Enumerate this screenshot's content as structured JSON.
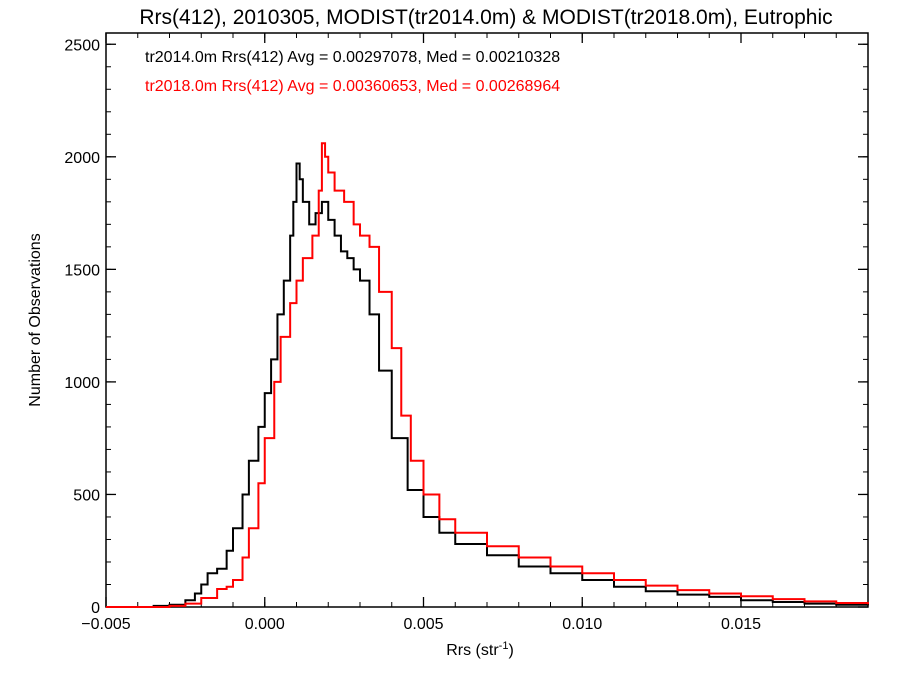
{
  "chart_data": {
    "type": "line",
    "title": "Rrs(412), 2010305, MODIST(tr2014.0m) & MODIST(tr2018.0m), Eutrophic",
    "xlabel": "Rrs (str",
    "xlabel_sup": "-1",
    "xlabel_close": ")",
    "ylabel": "Number of Observations",
    "xlim": [
      -0.005,
      0.019
    ],
    "ylim": [
      0,
      2550
    ],
    "xticks": [
      -0.005,
      0.0,
      0.005,
      0.01,
      0.015
    ],
    "xtick_labels": [
      "−0.005",
      "0.000",
      "0.005",
      "0.010",
      "0.015"
    ],
    "yticks": [
      0,
      500,
      1000,
      1500,
      2000,
      2500
    ],
    "ytick_labels": [
      "0",
      "500",
      "1000",
      "1500",
      "2000",
      "2500"
    ],
    "grid": false,
    "legend_placement": "top-left",
    "annotations": [
      {
        "text": "tr2014.0m Rrs(412) Avg = 0.00297078, Med = 0.00210328",
        "color": "#000000"
      },
      {
        "text": "tr2018.0m Rrs(412) Avg = 0.00360653, Med = 0.00268964",
        "color": "#ff0000"
      }
    ],
    "series": [
      {
        "name": "tr2014.0m",
        "color": "#000000",
        "draw": "steps",
        "x": [
          -0.005,
          -0.004,
          -0.0035,
          -0.003,
          -0.0025,
          -0.0022,
          -0.002,
          -0.0018,
          -0.0015,
          -0.0012,
          -0.001,
          -0.0007,
          -0.0005,
          -0.0002,
          0.0,
          0.0002,
          0.0004,
          0.0006,
          0.0008,
          0.0009,
          0.001,
          0.0011,
          0.0012,
          0.0014,
          0.0016,
          0.0018,
          0.002,
          0.0022,
          0.0024,
          0.0026,
          0.0028,
          0.003,
          0.0033,
          0.0036,
          0.004,
          0.0045,
          0.005,
          0.0055,
          0.006,
          0.007,
          0.008,
          0.009,
          0.01,
          0.011,
          0.012,
          0.013,
          0.014,
          0.015,
          0.016,
          0.017,
          0.018,
          0.019
        ],
        "y": [
          0,
          0,
          5,
          10,
          30,
          60,
          100,
          150,
          170,
          250,
          350,
          500,
          650,
          800,
          950,
          1100,
          1300,
          1450,
          1650,
          1800,
          1970,
          1900,
          1800,
          1700,
          1750,
          1800,
          1720,
          1650,
          1580,
          1550,
          1500,
          1450,
          1300,
          1050,
          750,
          520,
          400,
          330,
          280,
          230,
          180,
          150,
          120,
          90,
          70,
          55,
          45,
          30,
          22,
          15,
          10,
          8
        ]
      },
      {
        "name": "tr2018.0m",
        "color": "#ff0000",
        "draw": "steps",
        "x": [
          -0.005,
          -0.004,
          -0.003,
          -0.0025,
          -0.002,
          -0.0015,
          -0.0012,
          -0.001,
          -0.0007,
          -0.0005,
          -0.0002,
          0.0,
          0.0003,
          0.0005,
          0.0008,
          0.001,
          0.0012,
          0.0015,
          0.0017,
          0.0018,
          0.0019,
          0.002,
          0.0022,
          0.0025,
          0.0028,
          0.003,
          0.0033,
          0.0036,
          0.004,
          0.0043,
          0.0046,
          0.005,
          0.0055,
          0.006,
          0.007,
          0.008,
          0.009,
          0.01,
          0.011,
          0.012,
          0.013,
          0.014,
          0.015,
          0.016,
          0.017,
          0.018,
          0.019
        ],
        "y": [
          0,
          0,
          5,
          15,
          40,
          80,
          90,
          120,
          220,
          350,
          550,
          750,
          1000,
          1200,
          1350,
          1450,
          1550,
          1650,
          1850,
          2060,
          2000,
          1930,
          1850,
          1800,
          1700,
          1650,
          1600,
          1400,
          1150,
          850,
          650,
          500,
          390,
          330,
          270,
          220,
          180,
          150,
          120,
          95,
          75,
          60,
          48,
          35,
          25,
          18,
          12
        ]
      }
    ]
  }
}
